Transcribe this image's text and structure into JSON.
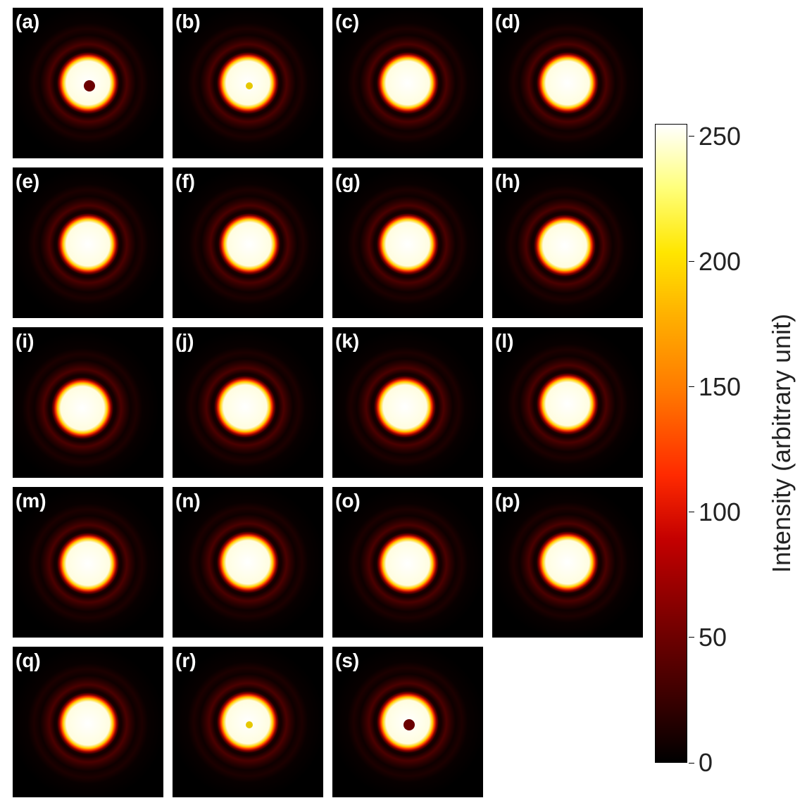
{
  "panels": [
    {
      "label": "(a)",
      "center_dot": "dark"
    },
    {
      "label": "(b)",
      "center_dot": "yellow"
    },
    {
      "label": "(c)",
      "center_dot": "none"
    },
    {
      "label": "(d)",
      "center_dot": "none"
    },
    {
      "label": "(e)",
      "center_dot": "none"
    },
    {
      "label": "(f)",
      "center_dot": "none"
    },
    {
      "label": "(g)",
      "center_dot": "none"
    },
    {
      "label": "(h)",
      "center_dot": "none"
    },
    {
      "label": "(i)",
      "center_dot": "none"
    },
    {
      "label": "(j)",
      "center_dot": "none"
    },
    {
      "label": "(k)",
      "center_dot": "none"
    },
    {
      "label": "(l)",
      "center_dot": "none"
    },
    {
      "label": "(m)",
      "center_dot": "none"
    },
    {
      "label": "(n)",
      "center_dot": "none"
    },
    {
      "label": "(o)",
      "center_dot": "none"
    },
    {
      "label": "(p)",
      "center_dot": "none"
    },
    {
      "label": "(q)",
      "center_dot": "none"
    },
    {
      "label": "(r)",
      "center_dot": "yellow"
    },
    {
      "label": "(s)",
      "center_dot": "dark"
    }
  ],
  "colorbar": {
    "label": "Intensity (arbitrary unit)",
    "range": [
      0,
      255
    ],
    "ticks": [
      {
        "value": 0,
        "label": "0"
      },
      {
        "value": 50,
        "label": "50"
      },
      {
        "value": 100,
        "label": "100"
      },
      {
        "value": 150,
        "label": "150"
      },
      {
        "value": 200,
        "label": "200"
      },
      {
        "value": 250,
        "label": "250"
      }
    ],
    "colormap": "hot"
  },
  "chart_data": {
    "type": "heatmap",
    "panel_count": 19,
    "colorbar_label": "Intensity (arbitrary unit)",
    "colorbar_range": [
      0,
      255
    ],
    "colorbar_ticks": [
      0,
      50,
      100,
      150,
      200,
      250
    ]
  }
}
